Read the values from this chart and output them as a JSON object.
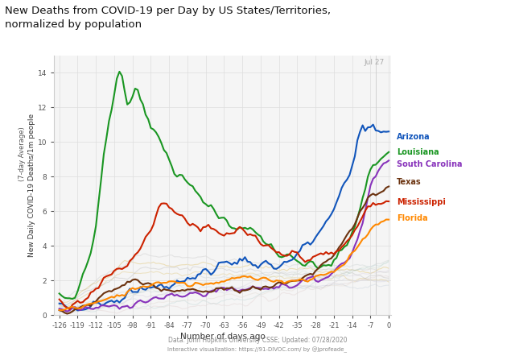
{
  "title_line1": "New Deaths from COVID-19 per Day by US States/Territories,",
  "title_line2": "normalized by population",
  "ylabel_main": "New Daily COVID-19 Deaths/1m people",
  "ylabel_sub": "(7-day Average)",
  "xlabel": "Number of days ago",
  "source_line1": "Data: John Hopkins University CSSE; Updated: 07/28/2020",
  "source_line2": "Interactive visualization: https://91-DIVOC.com/ by @jprofeade_",
  "jul27_label": "Jul 27",
  "x_ticks": [
    -126,
    -119,
    -112,
    -105,
    -98,
    -91,
    -84,
    -77,
    -70,
    -63,
    -56,
    -49,
    -42,
    -35,
    -28,
    -21,
    -14,
    -7,
    0
  ],
  "ylim": [
    0,
    15
  ],
  "xlim": [
    -128,
    1
  ],
  "plot_bg": "#f5f5f5",
  "fig_bg": "#ffffff",
  "grid_color": "#dddddd",
  "series": {
    "Louisiana": {
      "color": "#1a9622",
      "lw": 1.5
    },
    "Arizona": {
      "color": "#1155bb",
      "lw": 1.5
    },
    "South Carolina": {
      "color": "#8833bb",
      "lw": 1.5
    },
    "Texas": {
      "color": "#6b3310",
      "lw": 1.5
    },
    "Mississippi": {
      "color": "#cc2200",
      "lw": 1.5
    },
    "Florida": {
      "color": "#ff8800",
      "lw": 1.5
    }
  },
  "label_positions": {
    "Arizona": {
      "y": 10.3
    },
    "Louisiana": {
      "y": 9.4
    },
    "South Carolina": {
      "y": 8.7
    },
    "Texas": {
      "y": 7.7
    },
    "Mississippi": {
      "y": 6.5
    },
    "Florida": {
      "y": 5.6
    }
  }
}
